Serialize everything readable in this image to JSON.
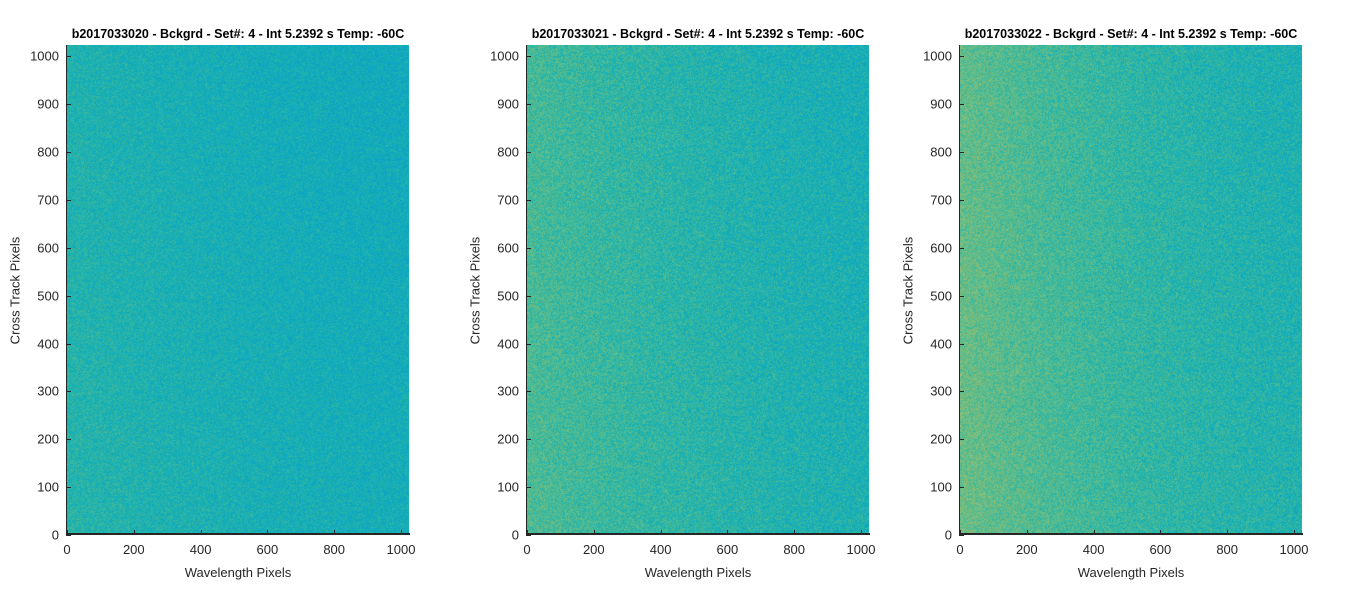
{
  "chart_data": [
    {
      "type": "heatmap",
      "title": "b2017033020 - Bckgrd - Set#: 4 - Int 5.2392 s Temp: -60C",
      "xlabel": "Wavelength Pixels",
      "ylabel": "Cross Track Pixels",
      "xlim": [
        0,
        1024
      ],
      "ylim": [
        0,
        1024
      ],
      "xticks": [
        0,
        200,
        400,
        600,
        800,
        1000
      ],
      "yticks": [
        0,
        100,
        200,
        300,
        400,
        500,
        600,
        700,
        800,
        900,
        1000
      ],
      "colormap": "parula",
      "base_level": 0.52,
      "left_edge_level": 0.56,
      "noise_amplitude": 0.06,
      "colors": {
        "base": "#1ba3c0",
        "light": "#3fb49a"
      }
    },
    {
      "type": "heatmap",
      "title": "b2017033021 - Bckgrd - Set#: 4 - Int 5.2392 s Temp: -60C",
      "xlabel": "Wavelength Pixels",
      "ylabel": "Cross Track Pixels",
      "xlim": [
        0,
        1024
      ],
      "ylim": [
        0,
        1024
      ],
      "xticks": [
        0,
        200,
        400,
        600,
        800,
        1000
      ],
      "yticks": [
        0,
        100,
        200,
        300,
        400,
        500,
        600,
        700,
        800,
        900,
        1000
      ],
      "colormap": "parula",
      "base_level": 0.54,
      "left_edge_level": 0.62,
      "noise_amplitude": 0.07,
      "colors": {
        "base": "#1aa6b8",
        "light": "#4ab896"
      }
    },
    {
      "type": "heatmap",
      "title": "b2017033022 - Bckgrd - Set#: 4 - Int 5.2392 s Temp: -60C",
      "xlabel": "Wavelength Pixels",
      "ylabel": "Cross Track Pixels",
      "xlim": [
        0,
        1024
      ],
      "ylim": [
        0,
        1024
      ],
      "xticks": [
        0,
        200,
        400,
        600,
        800,
        1000
      ],
      "yticks": [
        0,
        100,
        200,
        300,
        400,
        500,
        600,
        700,
        800,
        900,
        1000
      ],
      "colormap": "parula",
      "base_level": 0.55,
      "left_edge_level": 0.66,
      "noise_amplitude": 0.07,
      "colors": {
        "base": "#1ca8b5",
        "light": "#55bb8e"
      }
    }
  ]
}
